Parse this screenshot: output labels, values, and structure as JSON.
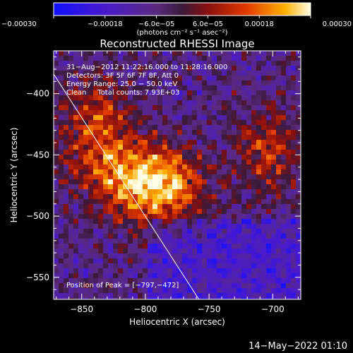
{
  "chart_data": {
    "type": "heatmap",
    "title": "Reconstructed RHESSI Image",
    "xlabel": "Heliocentric X (arcsec)",
    "ylabel": "Heliocentric Y (arcsec)",
    "xlim": [
      -872,
      -678
    ],
    "ylim": [
      -568,
      -365
    ],
    "x_ticks": [
      -850,
      -800,
      -750,
      -700
    ],
    "y_ticks": [
      -400,
      -450,
      -500,
      -550
    ],
    "x_tick_labels": [
      "−850",
      "−800",
      "−750",
      "−700"
    ],
    "y_tick_labels": [
      "−400",
      "−450",
      "−500",
      "−550"
    ],
    "colorbar": {
      "range": [
        -0.0003,
        0.0003
      ],
      "ticks": [
        -0.0003,
        -0.00018,
        -6e-05,
        6e-05,
        0.00018,
        0.0003
      ],
      "tick_labels": [
        "−0.00030",
        "−0.00018",
        "−6.0e−05",
        "6.0e−05",
        "0.00018",
        "0.00030"
      ],
      "unit_label": "(photons cm⁻² s⁻¹ asec⁻²)"
    },
    "annotations": [
      "31−Aug−2012 11:22:16.000 to 11:28:16.000",
      "Detectors: 3F 5F 6F 7F 8F, Att 0",
      "Energy Range: 25.0 − 50.0 keV",
      "Clean     Total counts: 7.93E+03",
      "Position of Peak = [−797,−472]"
    ],
    "peak": [
      -797,
      -472
    ],
    "limb_line": [
      [
        -872,
        -384
      ],
      [
        -758,
        -568
      ]
    ],
    "date_stamp": "14−May−2022 01:10"
  }
}
